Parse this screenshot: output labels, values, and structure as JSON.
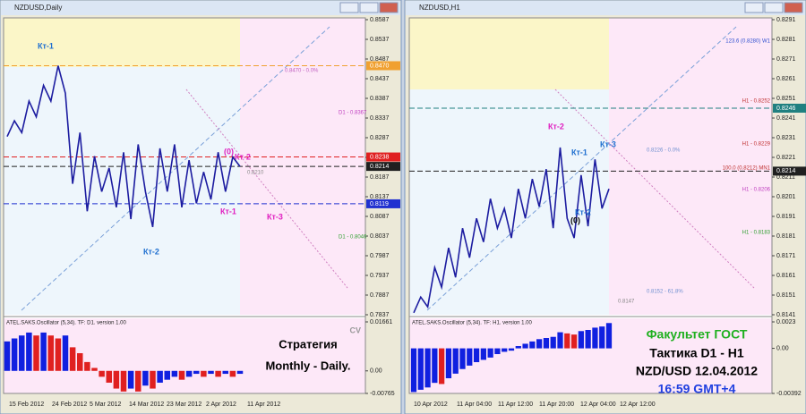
{
  "windows": [
    {
      "title": "NZDUSD,Daily",
      "ylim": [
        0.7837,
        0.8587
      ],
      "yticks": [
        0.8587,
        0.8537,
        0.8487,
        0.8437,
        0.8387,
        0.8337,
        0.8287,
        0.8237,
        0.8187,
        0.8137,
        0.8087,
        0.8037,
        0.7987,
        0.7937,
        0.7887,
        0.7837
      ],
      "line_color": "#1c1ca0",
      "values": [
        0.829,
        0.833,
        0.83,
        0.838,
        0.834,
        0.842,
        0.838,
        0.847,
        0.84,
        0.817,
        0.83,
        0.81,
        0.824,
        0.815,
        0.821,
        0.811,
        0.825,
        0.808,
        0.827,
        0.815,
        0.806,
        0.826,
        0.815,
        0.827,
        0.811,
        0.823,
        0.812,
        0.82,
        0.813,
        0.825,
        0.815,
        0.8238,
        0.8214
      ],
      "levels": [
        {
          "value": 0.847,
          "label": "0.8470",
          "color": "#f0a030"
        },
        {
          "value": 0.8238,
          "label": "0.8238",
          "color": "#e02020"
        },
        {
          "value": 0.8214,
          "label": "0.8214",
          "color": "#202020"
        },
        {
          "value": 0.8119,
          "label": "0.8119",
          "color": "#2030d0"
        }
      ],
      "labels": [
        "Кт-1",
        "Кт-2",
        "Кт-1",
        "(0)",
        "Кт-2",
        "Кт-3"
      ],
      "notes": [
        "0.8470 - 0.0%",
        "D1 - 0.8367",
        "0.8210",
        "D1 - 0.8046"
      ],
      "xticks": [
        "15 Feb 2012",
        "24 Feb 2012",
        "5 Mar 2012",
        "14 Mar 2012",
        "23 Mar 2012",
        "2 Apr 2012",
        "11 Apr 2012"
      ],
      "oscillator": {
        "title": "ATEL.SAKS.Oscillator (5,34). TF: D1. version 1.00",
        "ylim": [
          -0.00765,
          0.01661
        ],
        "yticks": [
          0.01661,
          {
            "value": 0,
            "label": "0.00"
          },
          -0.00765
        ],
        "values": [
          0.01,
          0.011,
          0.012,
          0.013,
          0.012,
          0.013,
          0.012,
          0.011,
          0.012,
          0.008,
          0.006,
          0.003,
          0.001,
          -0.002,
          -0.004,
          -0.006,
          -0.007,
          -0.006,
          -0.007,
          -0.005,
          -0.006,
          -0.004,
          -0.003,
          -0.002,
          -0.003,
          -0.002,
          -0.001,
          -0.002,
          -0.001,
          -0.002,
          -0.001,
          -0.002,
          -0.001
        ]
      },
      "overlay": [
        "CV",
        "Стратегия",
        "Monthly - Daily."
      ]
    },
    {
      "title": "NZDUSD,H1",
      "ylim": [
        0.8141,
        0.8291
      ],
      "yticks": [
        0.8291,
        0.8281,
        0.8271,
        0.8261,
        0.8251,
        0.8241,
        0.8231,
        0.8221,
        0.8211,
        0.8201,
        0.8191,
        0.8181,
        0.8171,
        0.8161,
        0.8151,
        0.8141
      ],
      "line_color": "#1c1ca0",
      "values": [
        0.8142,
        0.815,
        0.8145,
        0.8165,
        0.8155,
        0.8175,
        0.816,
        0.8185,
        0.817,
        0.819,
        0.8178,
        0.82,
        0.8185,
        0.8195,
        0.818,
        0.8205,
        0.819,
        0.821,
        0.8196,
        0.8215,
        0.8185,
        0.8226,
        0.819,
        0.818,
        0.8212,
        0.8186,
        0.822,
        0.8195,
        0.8205
      ],
      "levels": [
        {
          "value": 0.8246,
          "label": "0.8246",
          "color": "#208080"
        },
        {
          "value": 0.8214,
          "label": "0.8214",
          "color": "#202020"
        }
      ],
      "labels": [
        "Кт-2",
        "Кт-1",
        "Кт-3",
        "Кт-2",
        "(0)"
      ],
      "notes": [
        "123.6 (0.8280) W1",
        "H1 - 0.8252",
        "0.8226 - 0.0%",
        "H1 - 0.8229",
        "100.0 (0.8212) MN1",
        "H1 - 0.8206",
        "H1 - 0.8183",
        "0.8152 - 61.8%",
        "0.8147"
      ],
      "xticks": [
        "10 Apr 2012",
        "11 Apr 04:00",
        "11 Apr 12:00",
        "11 Apr 20:00",
        "12 Apr 04:00",
        "12 Apr 12:00"
      ],
      "oscillator": {
        "title": "ATEL.SAKS.Oscillator (5,34). TF: H1. version 1.00",
        "ylim": [
          -0.00392,
          0.0023
        ],
        "yticks": [
          0.0023,
          {
            "value": 0,
            "label": "0.00"
          },
          -0.00392
        ],
        "values": [
          -0.0038,
          -0.0036,
          -0.0034,
          -0.003,
          -0.0031,
          -0.0026,
          -0.0022,
          -0.0018,
          -0.0015,
          -0.0012,
          -0.001,
          -0.0008,
          -0.0005,
          -0.0003,
          -0.0002,
          0.0002,
          0.0004,
          0.0006,
          0.0008,
          0.0009,
          0.001,
          0.0014,
          0.0013,
          0.0012,
          0.0015,
          0.0016,
          0.0018,
          0.0019,
          0.0022
        ]
      },
      "overlay": [
        "Факультет ГОСТ",
        "Тактика D1 - H1",
        "NZD/USD 12.04.2012",
        "16:59 GMT+4"
      ]
    }
  ]
}
